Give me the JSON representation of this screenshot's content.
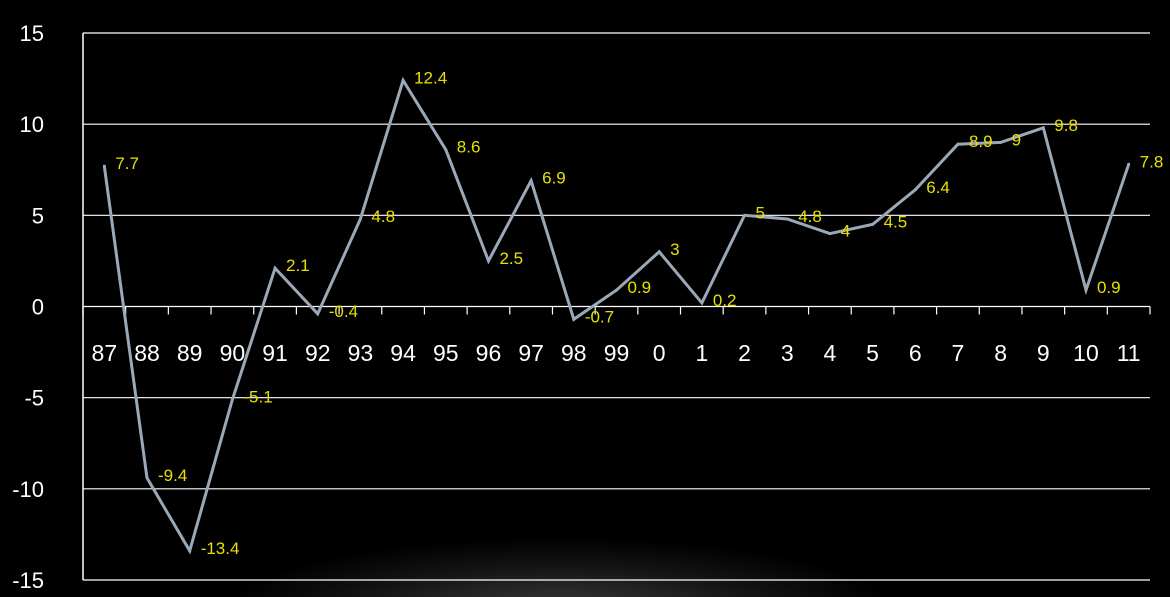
{
  "chart_data": {
    "type": "line",
    "title": "",
    "xlabel": "",
    "ylabel": "",
    "categories": [
      "87",
      "88",
      "89",
      "90",
      "91",
      "92",
      "93",
      "94",
      "95",
      "96",
      "97",
      "98",
      "99",
      "0",
      "1",
      "2",
      "3",
      "4",
      "5",
      "6",
      "7",
      "8",
      "9",
      "10",
      "11"
    ],
    "series": [
      {
        "values": [
          7.7,
          -9.4,
          -13.4,
          -5.1,
          2.1,
          -0.4,
          4.8,
          12.4,
          8.6,
          2.5,
          6.9,
          -0.7,
          0.9,
          3,
          0.2,
          5,
          4.8,
          4,
          4.5,
          6.4,
          8.9,
          9,
          9.8,
          0.9,
          7.8
        ]
      }
    ],
    "ylim": [
      -15,
      15
    ],
    "yticks": [
      15,
      10,
      5,
      0,
      -5,
      -10,
      -15
    ],
    "grid": true,
    "colors": {
      "background": "#000000",
      "line": "#9aa8b8",
      "grid": "#ffffff",
      "labels": "#e8e000",
      "ticks": "#ffffff"
    }
  }
}
